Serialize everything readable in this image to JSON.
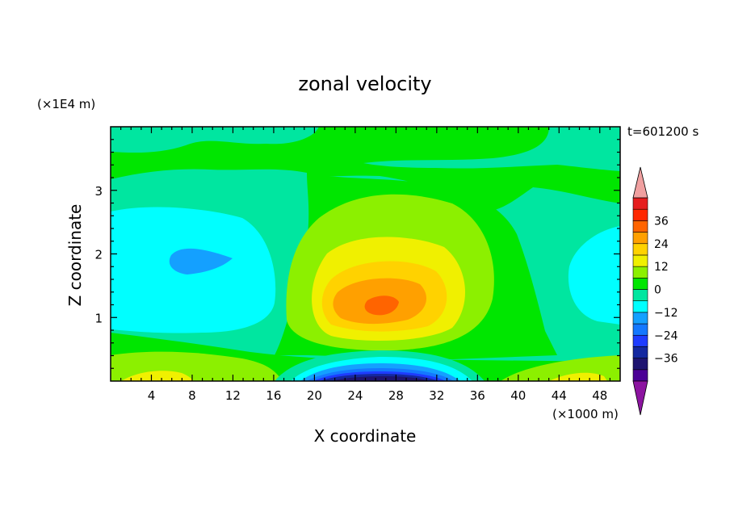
{
  "chart_data": {
    "type": "heatmap",
    "title": "zonal velocity",
    "xlabel": "X coordinate",
    "ylabel": "Z coordinate",
    "x_units": "(×1000 m)",
    "y_units": "(×1E4 m)",
    "time_label": "t=601200 s",
    "xlim": [
      0,
      50
    ],
    "ylim": [
      0,
      4
    ],
    "x_ticks": [
      4,
      8,
      12,
      16,
      20,
      24,
      28,
      32,
      36,
      40,
      44,
      48
    ],
    "y_ticks": [
      1,
      2,
      3
    ],
    "colorbar": {
      "tick_labels": [
        "36",
        "24",
        "12",
        "0",
        "-12",
        "-24",
        "-36"
      ],
      "levels": [
        -42,
        -36,
        -30,
        -24,
        -18,
        -12,
        -6,
        0,
        6,
        12,
        18,
        24,
        30,
        36,
        42
      ],
      "colors": [
        "#4b0096",
        "#1e1470",
        "#1428a0",
        "#1e3cff",
        "#1478ff",
        "#14a0ff",
        "#00ffff",
        "#00e6a0",
        "#00e600",
        "#8cf000",
        "#f0f000",
        "#ffd200",
        "#ffa000",
        "#ff6400",
        "#ff2800",
        "#e61e1e"
      ],
      "under_color": "#8c14a0",
      "over_color": "#f0a0a0"
    },
    "features": [
      {
        "x": 26,
        "z": 1.15,
        "value": 30,
        "note": "positive core"
      },
      {
        "x": 26,
        "z": 0.08,
        "value": -40,
        "note": "negative core near surface"
      },
      {
        "x": 9,
        "z": 1.9,
        "value": -14,
        "note": "weak negative region left"
      },
      {
        "x": 48,
        "z": 1.5,
        "value": -12,
        "note": "weak negative region right"
      }
    ]
  }
}
